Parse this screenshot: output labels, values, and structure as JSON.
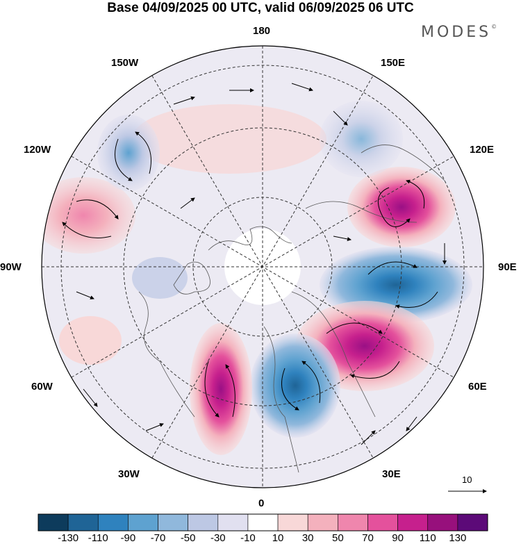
{
  "title": "Base 04/09/2025 00 UTC, valid 06/09/2025 06 UTC",
  "brand": {
    "text": "MODES",
    "mark": "©"
  },
  "longitude_labels": {
    "top": "180",
    "top_right": "150E",
    "right_upper": "120E",
    "right": "90E",
    "right_lower": "60E",
    "bottom_right": "30E",
    "bottom": "0",
    "bottom_left": "30W",
    "left_lower": "60W",
    "left": "90W",
    "left_upper": "120W",
    "top_left": "150W"
  },
  "vector_scale": {
    "label": "10"
  },
  "colorbar": {
    "colors": [
      "#0d3b5c",
      "#1f6496",
      "#2f82be",
      "#5ea2d0",
      "#90b8dc",
      "#bdc8e4",
      "#e1e0f0",
      "#ffffff",
      "#f8d8d8",
      "#f4b1bd",
      "#ef86ad",
      "#e4519c",
      "#c6208d",
      "#97107c",
      "#5c0a78"
    ],
    "labels": [
      "-130",
      "-110",
      "-90",
      "-70",
      "-50",
      "-30",
      "-10",
      "10",
      "30",
      "50",
      "70",
      "90",
      "110",
      "130"
    ]
  }
}
